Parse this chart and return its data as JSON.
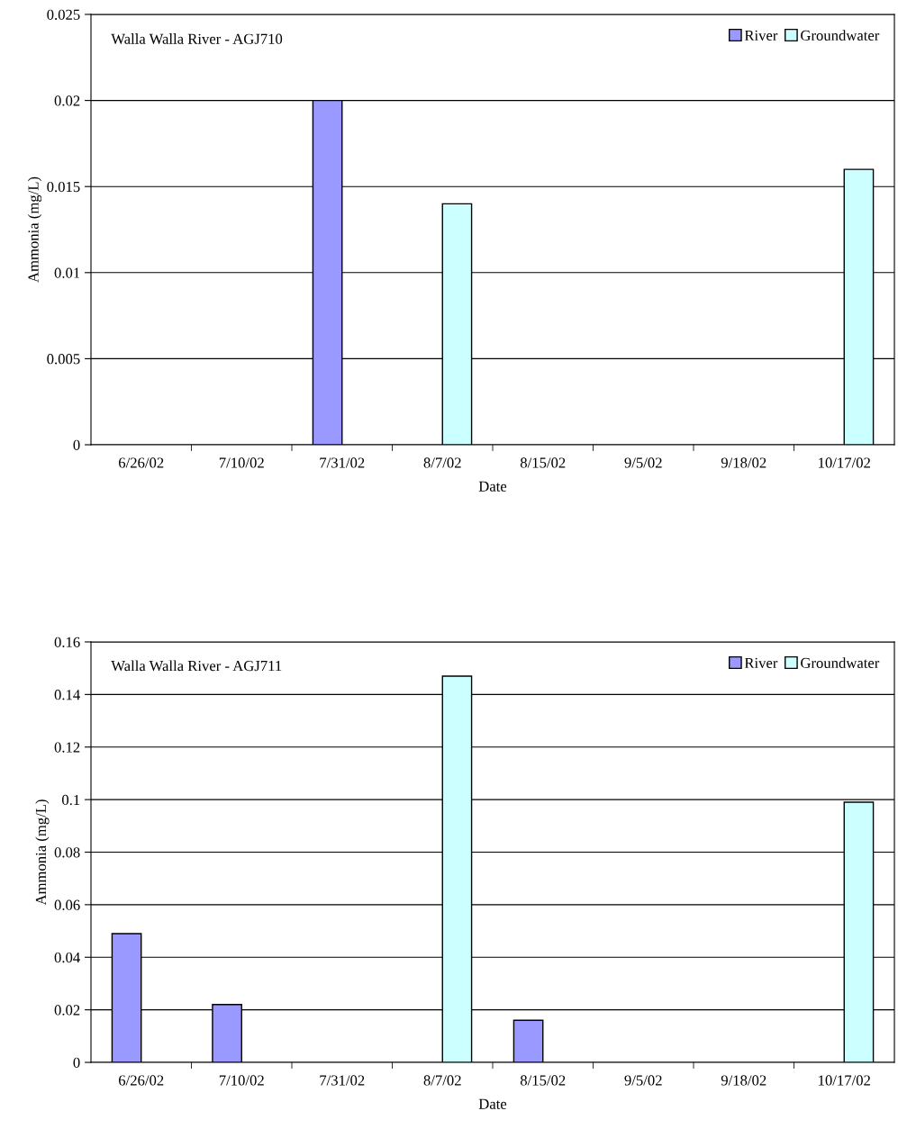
{
  "chart_data": [
    {
      "type": "bar",
      "annotations": [
        "Walla Walla River - AGJ710"
      ],
      "xlabel": "Date",
      "ylabel": "Ammonia (mg/L)",
      "categories": [
        "6/26/02",
        "7/10/02",
        "7/31/02",
        "8/7/02",
        "8/15/02",
        "9/5/02",
        "9/18/02",
        "10/17/02"
      ],
      "series": [
        {
          "name": "River",
          "color": "#9999ff",
          "values": [
            null,
            null,
            0.02,
            null,
            null,
            null,
            null,
            null
          ]
        },
        {
          "name": "Groundwater",
          "color": "#ccffff",
          "values": [
            null,
            null,
            null,
            0.014,
            null,
            null,
            null,
            0.016
          ]
        }
      ],
      "ylim": [
        0,
        0.025
      ],
      "yticks": [
        0,
        0.005,
        0.01,
        0.015,
        0.02,
        0.025
      ],
      "grid": "y",
      "legend": "top right"
    },
    {
      "type": "bar",
      "annotations": [
        "Walla Walla River - AGJ711"
      ],
      "xlabel": "Date",
      "ylabel": "Ammonia (mg/L)",
      "categories": [
        "6/26/02",
        "7/10/02",
        "7/31/02",
        "8/7/02",
        "8/15/02",
        "9/5/02",
        "9/18/02",
        "10/17/02"
      ],
      "series": [
        {
          "name": "River",
          "color": "#9999ff",
          "values": [
            0.049,
            0.022,
            null,
            null,
            0.016,
            null,
            null,
            null
          ]
        },
        {
          "name": "Groundwater",
          "color": "#ccffff",
          "values": [
            null,
            null,
            null,
            0.147,
            null,
            null,
            null,
            0.099
          ]
        }
      ],
      "ylim": [
        0,
        0.16
      ],
      "yticks": [
        0,
        0.02,
        0.04,
        0.06,
        0.08,
        0.1,
        0.12,
        0.14,
        0.16
      ],
      "grid": "y",
      "legend": "top right"
    }
  ]
}
